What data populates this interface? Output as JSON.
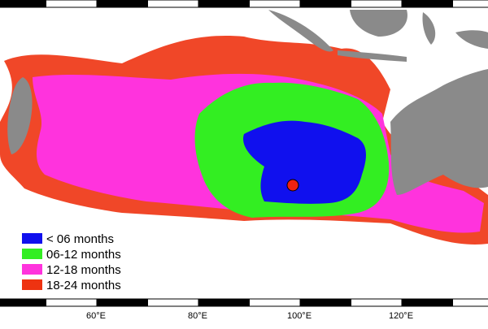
{
  "map": {
    "legend": [
      {
        "label": "< 06 months",
        "color": "#1010ee"
      },
      {
        "label": "06-12 months",
        "color": "#33ee22"
      },
      {
        "label": "12-18 months",
        "color": "#ff33dd"
      },
      {
        "label": "18-24 months",
        "color": "#ee3311"
      }
    ],
    "lon_labels": [
      {
        "value": 60,
        "label": "60°E"
      },
      {
        "value": 80,
        "label": "80°E"
      },
      {
        "value": 100,
        "label": "100°E"
      },
      {
        "value": 120,
        "label": "120°E"
      }
    ],
    "marker_color": "#ee2211"
  }
}
